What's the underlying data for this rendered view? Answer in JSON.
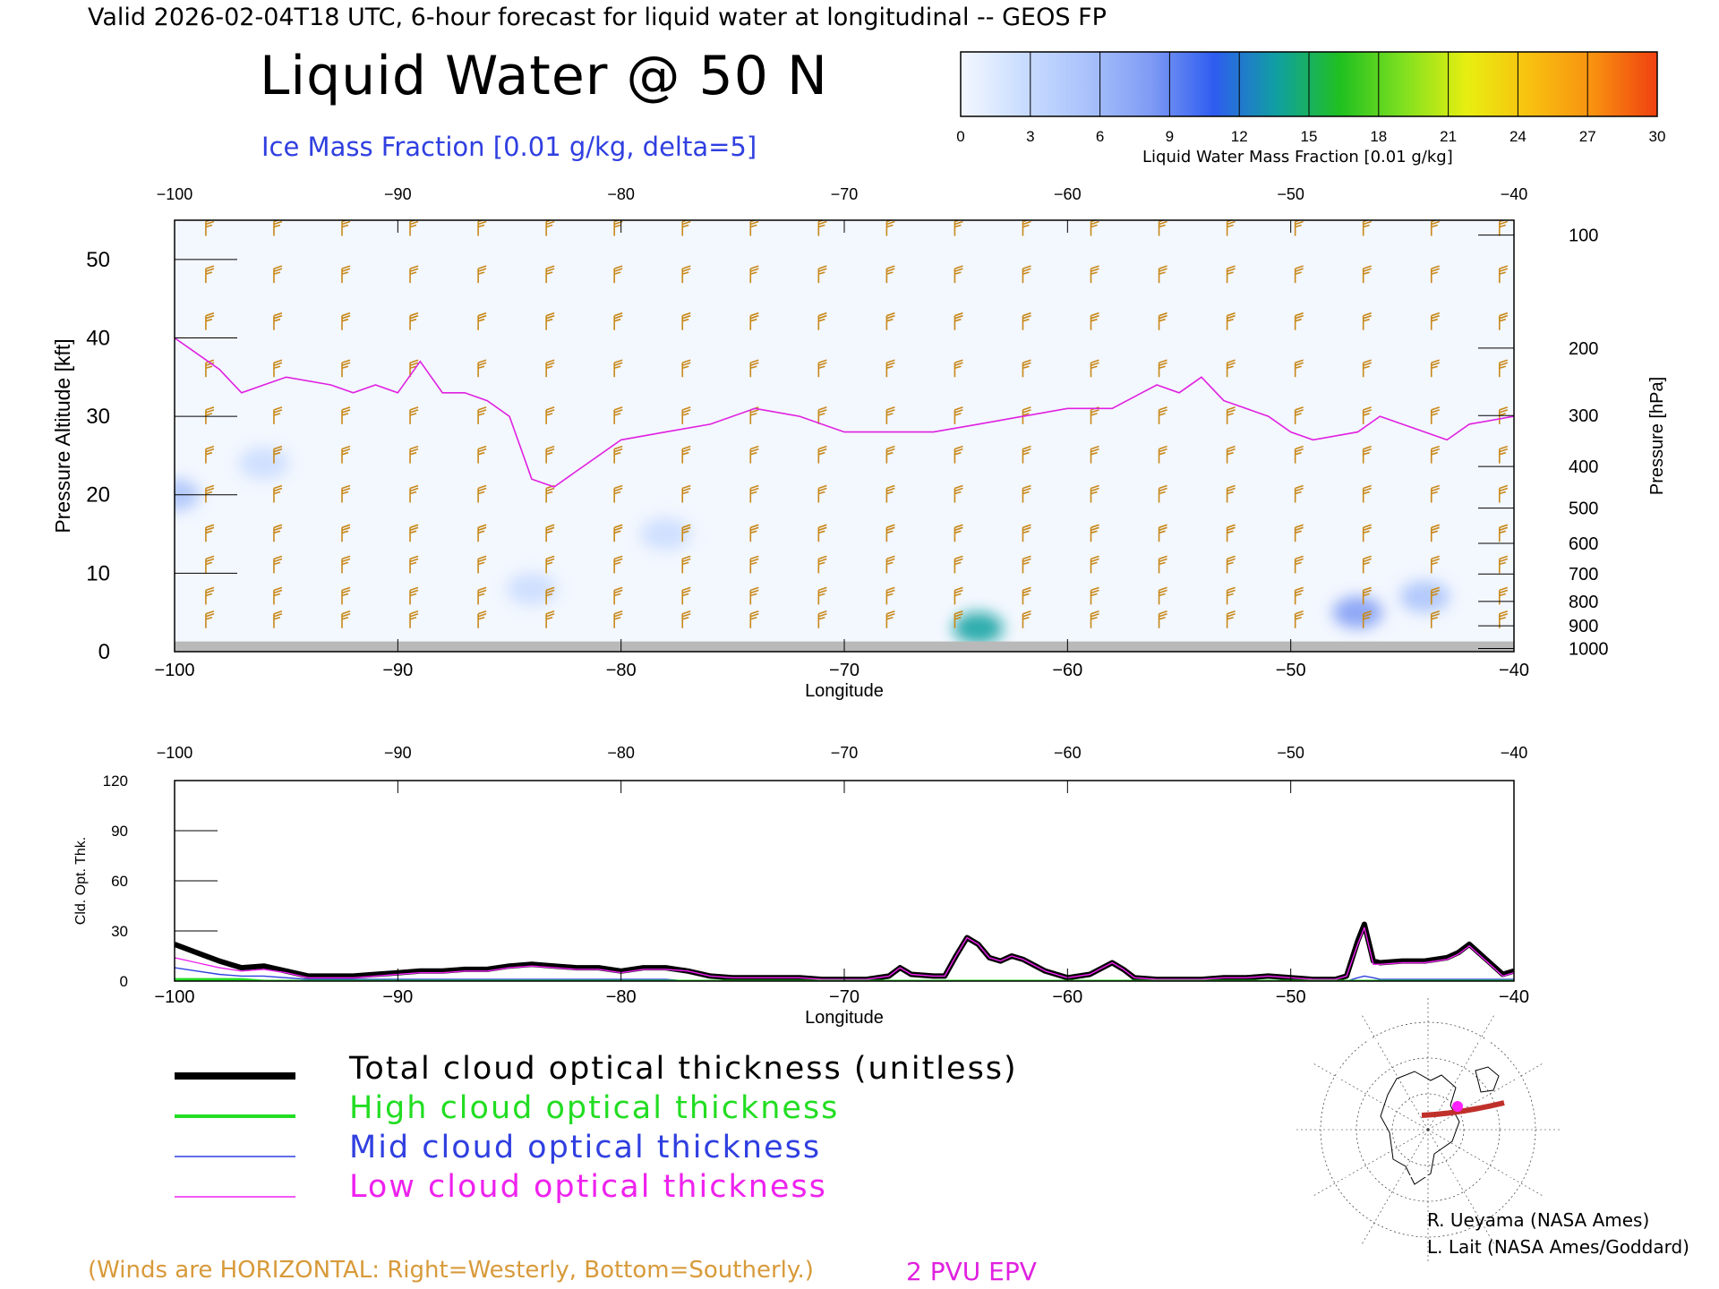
{
  "header": {
    "valid_line": "Valid 2026-02-04T18 UTC, 6-hour forecast for liquid water at longitudinal -- GEOS FP",
    "title": "Liquid Water @ 50 N",
    "subtitle": "Ice Mass Fraction [0.01 g/kg, delta=5]"
  },
  "colorbar": {
    "caption": "Liquid Water Mass Fraction [0.01 g/kg]",
    "ticks": [
      "0",
      "3",
      "6",
      "9",
      "12",
      "15",
      "18",
      "21",
      "24",
      "27",
      "30"
    ],
    "colors": [
      "#f4f8ff",
      "#c9dcff",
      "#a9c2fb",
      "#7f9bf4",
      "#2e5cf0",
      "#10a0a0",
      "#20c020",
      "#80e020",
      "#e8ee10",
      "#f8c010",
      "#f89010",
      "#f04010"
    ]
  },
  "legend": {
    "total": "Total cloud optical thickness (unitless)",
    "high": "High cloud optical thickness",
    "mid": "Mid cloud optical thickness",
    "low": "Low cloud optical thickness",
    "colors": {
      "total": "#000000",
      "high": "#22dd22",
      "mid": "#2f3fe0",
      "low": "#ee22ee"
    }
  },
  "notes": {
    "winds": "(Winds are HORIZONTAL: Right=Westerly, Bottom=Southerly.)",
    "epv": "2 PVU EPV",
    "credit1": "R. Ueyama (NASA Ames)",
    "credit2": "L. Lait (NASA Ames/Goddard)"
  },
  "chart_data": [
    {
      "type": "heatmap",
      "xlabel": "Longitude",
      "ylabel": "Pressure Altitude [kft]",
      "ylabel_right": "Pressure [hPa]",
      "xlim": [
        -100,
        -40
      ],
      "ylim": [
        0,
        55
      ],
      "x_ticks": [
        "-100",
        "-90",
        "-80",
        "-70",
        "-60",
        "-50",
        "-40"
      ],
      "y_ticks": [
        "0",
        "10",
        "20",
        "30",
        "40",
        "50"
      ],
      "pressure_ticks": [
        {
          "label": "100",
          "kft": 53.1
        },
        {
          "label": "200",
          "kft": 38.7
        },
        {
          "label": "300",
          "kft": 30.1
        },
        {
          "label": "400",
          "kft": 23.6
        },
        {
          "label": "500",
          "kft": 18.3
        },
        {
          "label": "600",
          "kft": 13.8
        },
        {
          "label": "700",
          "kft": 9.9
        },
        {
          "label": "800",
          "kft": 6.4
        },
        {
          "label": "900",
          "kft": 3.3
        },
        {
          "label": "1000",
          "kft": 0.4
        }
      ],
      "epv_2pvu_kft": [
        [
          -100,
          40
        ],
        [
          -98,
          36
        ],
        [
          -97,
          33
        ],
        [
          -96,
          34
        ],
        [
          -95,
          35
        ],
        [
          -93,
          34
        ],
        [
          -92,
          33
        ],
        [
          -91,
          34
        ],
        [
          -90,
          33
        ],
        [
          -89,
          37
        ],
        [
          -88,
          33
        ],
        [
          -87,
          33
        ],
        [
          -86,
          32
        ],
        [
          -85,
          30
        ],
        [
          -84.5,
          26
        ],
        [
          -84,
          22
        ],
        [
          -83,
          21
        ],
        [
          -82,
          23
        ],
        [
          -80,
          27
        ],
        [
          -78,
          28
        ],
        [
          -76,
          29
        ],
        [
          -74,
          31
        ],
        [
          -72,
          30
        ],
        [
          -70,
          28
        ],
        [
          -68,
          28
        ],
        [
          -66,
          28
        ],
        [
          -64,
          29
        ],
        [
          -62,
          30
        ],
        [
          -60,
          31
        ],
        [
          -58,
          31
        ],
        [
          -56,
          34
        ],
        [
          -55,
          33
        ],
        [
          -54,
          35
        ],
        [
          -53,
          32
        ],
        [
          -51,
          30
        ],
        [
          -50,
          28
        ],
        [
          -49,
          27
        ],
        [
          -47,
          28
        ],
        [
          -46,
          30
        ],
        [
          -44,
          28
        ],
        [
          -43,
          27
        ],
        [
          -42,
          29
        ],
        [
          -40,
          30
        ]
      ],
      "liquid_water_blobs": [
        {
          "lon": -100,
          "kft": 20,
          "value": 5
        },
        {
          "lon": -96,
          "kft": 24,
          "value": 2
        },
        {
          "lon": -78,
          "kft": 15,
          "value": 3
        },
        {
          "lon": -84,
          "kft": 8,
          "value": 3
        },
        {
          "lon": -64,
          "kft": 3,
          "value": 14
        },
        {
          "lon": -47,
          "kft": 5,
          "value": 9
        },
        {
          "lon": -44,
          "kft": 7,
          "value": 6
        }
      ]
    },
    {
      "type": "line",
      "xlabel": "Longitude",
      "ylabel": "Cld. Opt. Thk.",
      "xlim": [
        -100,
        -40
      ],
      "ylim": [
        0,
        120
      ],
      "x_ticks": [
        "-100",
        "-90",
        "-80",
        "-70",
        "-60",
        "-50",
        "-40"
      ],
      "y_ticks": [
        "0",
        "30",
        "60",
        "90",
        "120"
      ],
      "x": [
        -100,
        -99,
        -98,
        -97,
        -96,
        -95,
        -94,
        -93,
        -92,
        -91,
        -90,
        -89,
        -88,
        -87,
        -86,
        -85,
        -84,
        -83,
        -82,
        -81,
        -80,
        -79,
        -78,
        -77,
        -76,
        -75,
        -74,
        -73,
        -72,
        -71,
        -70,
        -69,
        -68,
        -67.5,
        -67,
        -66,
        -65.5,
        -65,
        -64.5,
        -64,
        -63.5,
        -63,
        -62.5,
        -62,
        -61,
        -60,
        -59,
        -58,
        -57.5,
        -57,
        -56,
        -55,
        -54,
        -53,
        -52,
        -51,
        -50,
        -49,
        -48,
        -47.5,
        -47,
        -46.7,
        -46.3,
        -46,
        -45,
        -44,
        -43,
        -42.5,
        -42,
        -41,
        -40.5,
        -40
      ],
      "series": [
        {
          "name": "Total cloud optical thickness (unitless)",
          "values": [
            22,
            17,
            12,
            8,
            9,
            6,
            3,
            3,
            3,
            4,
            5,
            6,
            6,
            7,
            7,
            9,
            10,
            9,
            8,
            8,
            6,
            8,
            8,
            6,
            3,
            2,
            2,
            2,
            2,
            1,
            1,
            1,
            3,
            8,
            4,
            3,
            3,
            15,
            26,
            22,
            14,
            12,
            15,
            13,
            6,
            2,
            4,
            11,
            7,
            2,
            1,
            1,
            1,
            2,
            2,
            3,
            2,
            1,
            1,
            3,
            24,
            34,
            12,
            11,
            12,
            12,
            14,
            17,
            22,
            10,
            4,
            6
          ]
        },
        {
          "name": "High cloud optical thickness",
          "values": [
            1,
            1,
            1,
            1,
            0,
            0,
            0,
            0,
            0,
            0,
            0,
            0,
            0,
            0,
            0,
            0,
            0,
            0,
            0,
            0,
            0,
            0,
            0,
            0,
            0,
            0,
            0,
            0,
            0,
            0,
            0,
            0,
            0,
            0,
            0,
            0,
            0,
            0,
            0,
            0,
            0,
            0,
            0,
            0,
            0,
            0,
            0,
            0,
            0,
            0,
            0,
            0,
            0,
            0,
            0,
            0,
            0,
            0,
            0,
            0,
            0,
            0,
            0,
            0,
            0,
            0,
            0,
            0,
            0,
            0,
            0,
            0
          ]
        },
        {
          "name": "Mid cloud optical thickness",
          "values": [
            8,
            6,
            4,
            3,
            3,
            2,
            1,
            1,
            1,
            1,
            1,
            1,
            1,
            1,
            1,
            1,
            1,
            1,
            1,
            1,
            1,
            1,
            1,
            0,
            0,
            0,
            0,
            0,
            0,
            0,
            0,
            0,
            0,
            0,
            0,
            0,
            0,
            0,
            0,
            0,
            0,
            0,
            0,
            0,
            0,
            0,
            0,
            0,
            0,
            0,
            0,
            0,
            0,
            0,
            0,
            0,
            0,
            0,
            0,
            0,
            2,
            3,
            2,
            1,
            1,
            1,
            1,
            1,
            1,
            1,
            1,
            1
          ]
        },
        {
          "name": "Low cloud optical thickness",
          "values": [
            14,
            11,
            8,
            6,
            7,
            5,
            2,
            2,
            2,
            3,
            4,
            5,
            5,
            6,
            6,
            8,
            9,
            8,
            7,
            7,
            5,
            7,
            7,
            6,
            3,
            2,
            2,
            2,
            2,
            1,
            1,
            1,
            3,
            8,
            4,
            3,
            3,
            15,
            26,
            22,
            14,
            12,
            15,
            13,
            6,
            2,
            4,
            11,
            7,
            2,
            1,
            1,
            1,
            2,
            2,
            3,
            2,
            1,
            1,
            3,
            22,
            32,
            10,
            10,
            11,
            11,
            13,
            16,
            21,
            9,
            3,
            5
          ]
        }
      ]
    }
  ]
}
